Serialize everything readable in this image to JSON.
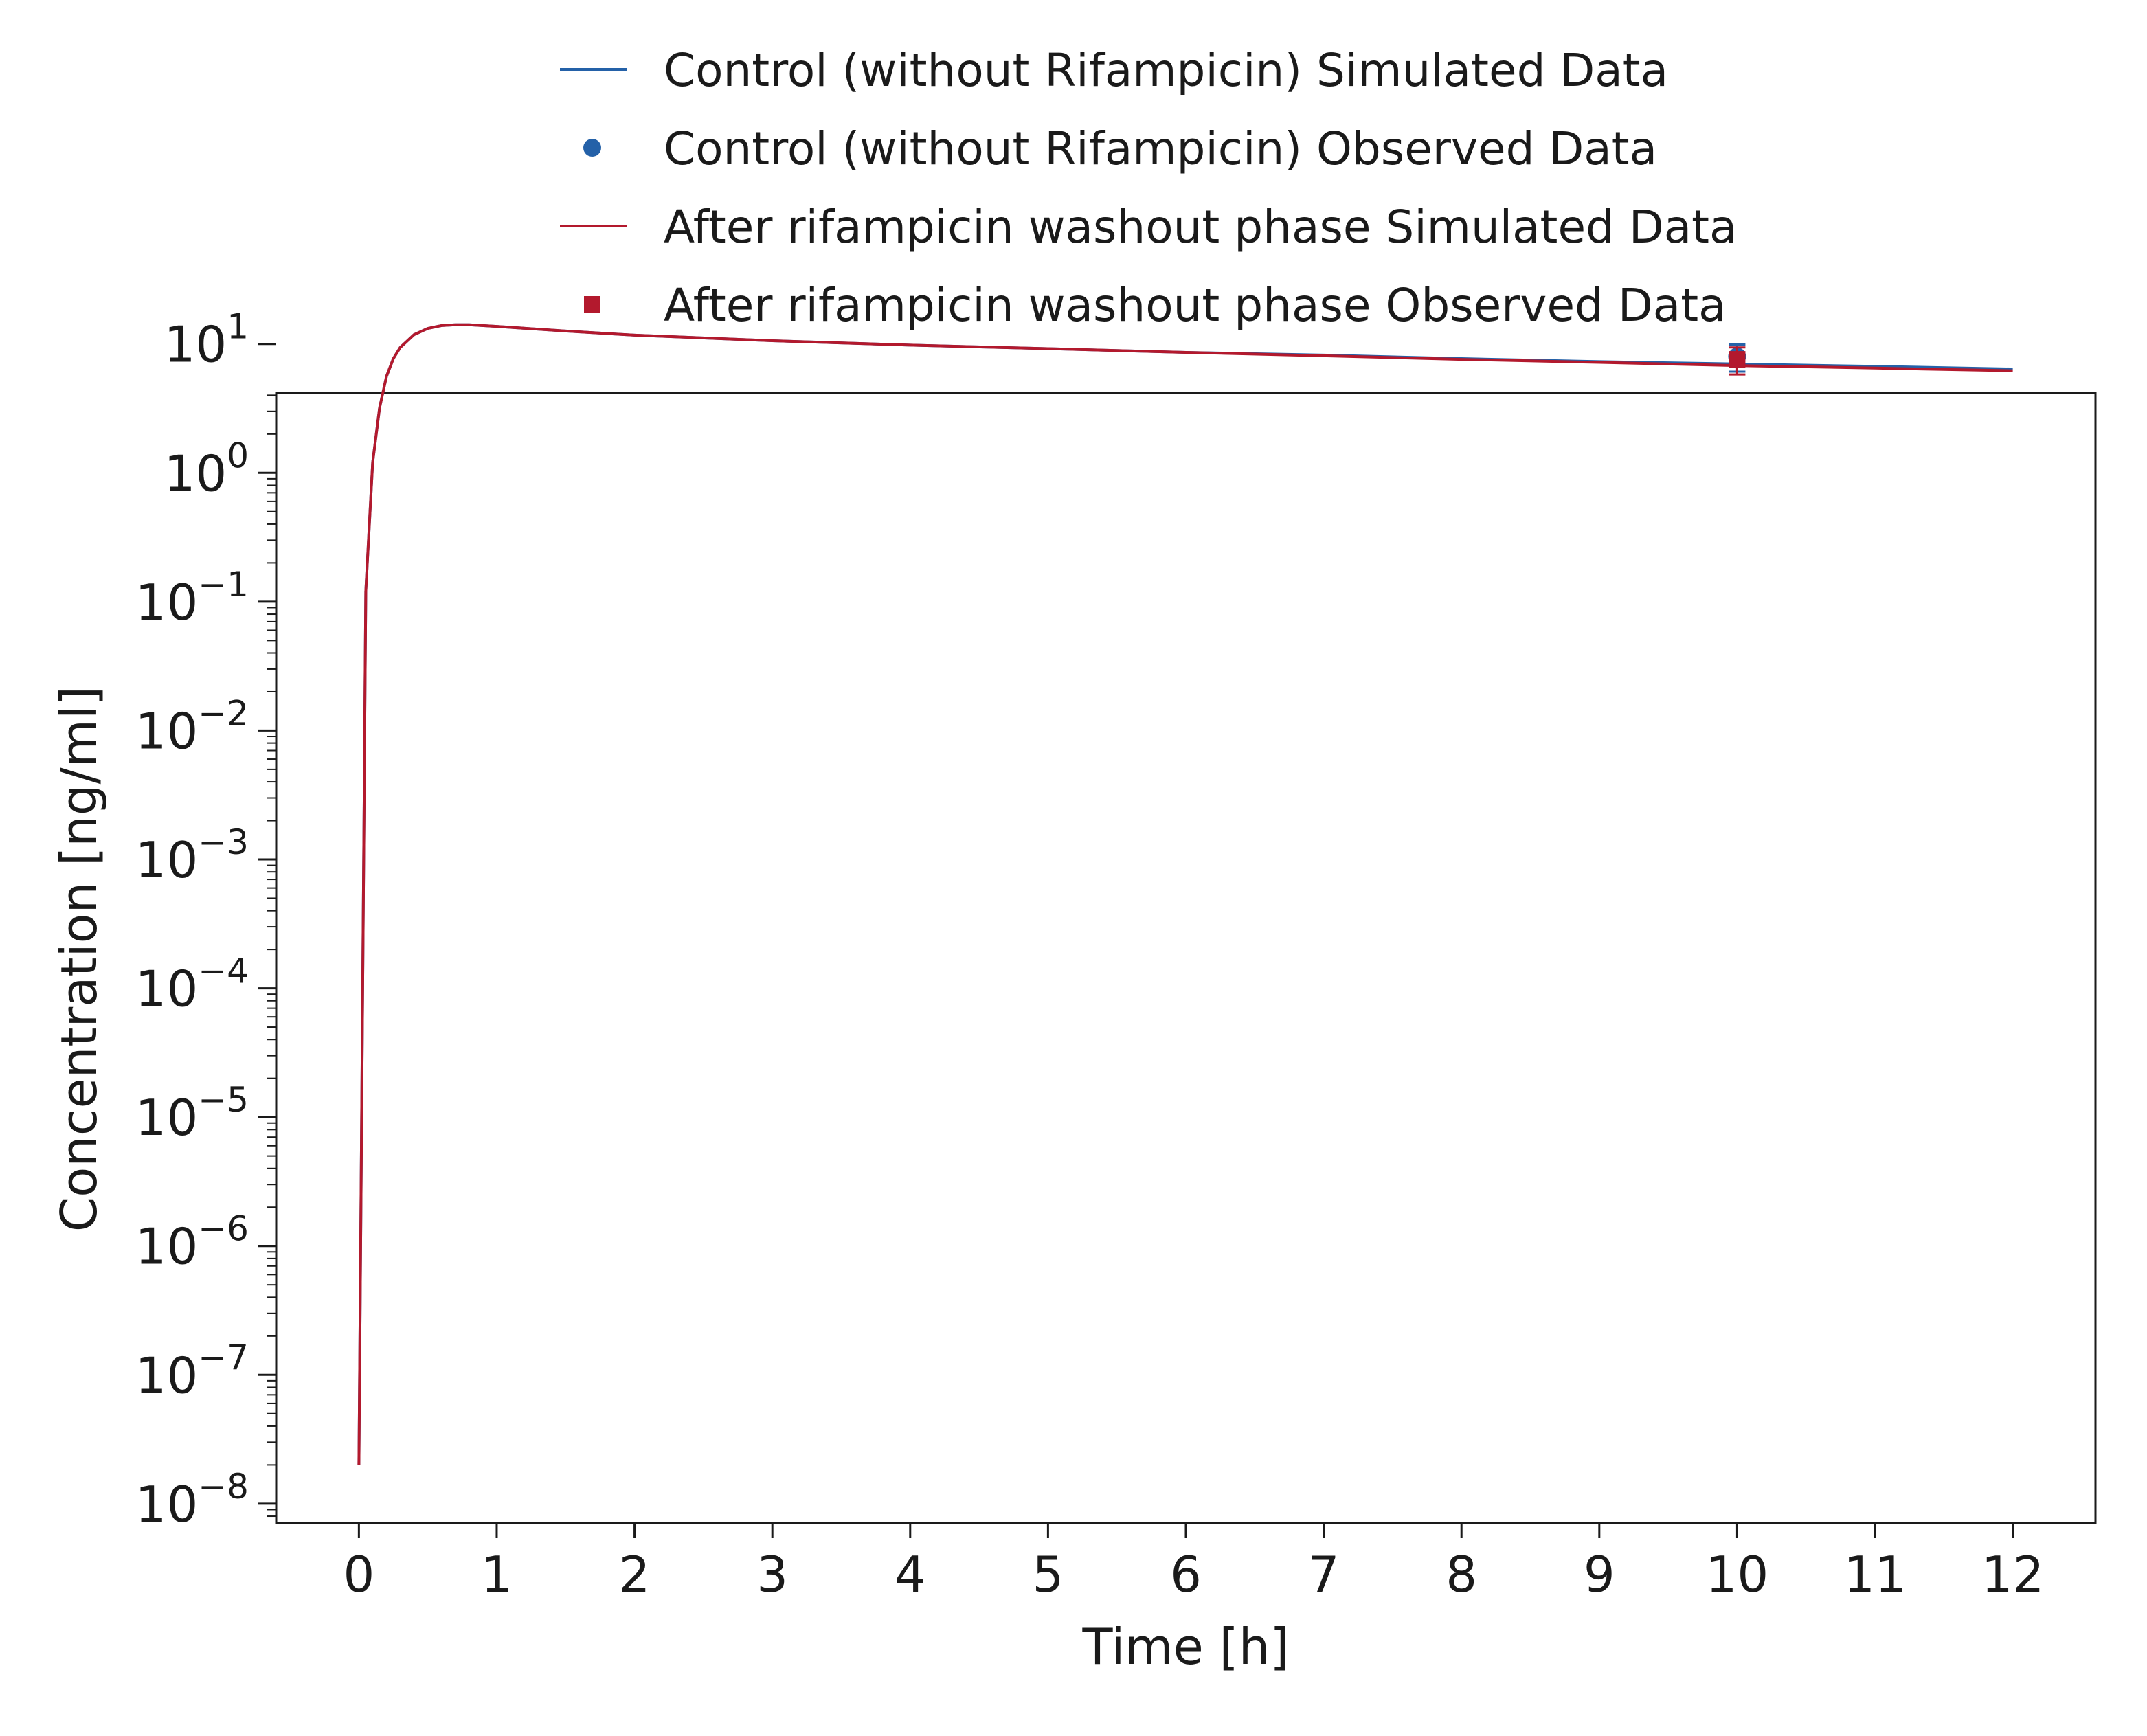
{
  "chart_data": {
    "type": "line",
    "title": "",
    "xlabel": "Time [h]",
    "ylabel": "Concentration [ng/ml]",
    "xlim": [
      -0.6,
      12.6
    ],
    "ylim_log10": [
      -8.15,
      0.62
    ],
    "yscale": "log",
    "x_ticks": [
      0,
      1,
      2,
      3,
      4,
      5,
      6,
      7,
      8,
      9,
      10,
      11,
      12
    ],
    "x_tick_labels": [
      "0",
      "1",
      "2",
      "3",
      "4",
      "5",
      "6",
      "7",
      "8",
      "9",
      "10",
      "11",
      "12"
    ],
    "y_tick_labels": [
      {
        "value": 10,
        "base": "10",
        "exp": "1"
      },
      {
        "value": 1,
        "base": "10",
        "exp": "0"
      },
      {
        "value": 0.1,
        "base": "10",
        "exp": "−1"
      },
      {
        "value": 0.01,
        "base": "10",
        "exp": "−2"
      },
      {
        "value": 0.001,
        "base": "10",
        "exp": "−3"
      },
      {
        "value": 0.0001,
        "base": "10",
        "exp": "−4"
      },
      {
        "value": 1e-05,
        "base": "10",
        "exp": "−5"
      },
      {
        "value": 1e-06,
        "base": "10",
        "exp": "−6"
      },
      {
        "value": 1e-07,
        "base": "10",
        "exp": "−7"
      },
      {
        "value": 1e-08,
        "base": "10",
        "exp": "−8"
      }
    ],
    "grid": false,
    "legend_position": "top-center",
    "series": [
      {
        "name": "Control (without Rifampicin) Simulated Data",
        "kind": "line",
        "color": "#2461a8",
        "x": [
          0,
          0.05,
          0.1,
          0.15,
          0.2,
          0.25,
          0.3,
          0.4,
          0.5,
          0.6,
          0.7,
          0.8,
          1,
          1.5,
          2,
          3,
          4,
          5,
          6,
          7,
          8,
          9,
          10,
          11,
          12
        ],
        "y": [
          2e-08,
          0.12,
          1.2,
          3.2,
          5.6,
          7.7,
          9.4,
          11.8,
          13.2,
          13.9,
          14.1,
          14.1,
          13.7,
          12.6,
          11.7,
          10.6,
          9.8,
          9.2,
          8.6,
          8.2,
          7.7,
          7.3,
          7.0,
          6.7,
          6.4
        ]
      },
      {
        "name": "Control (without Rifampicin) Observed Data",
        "kind": "points",
        "marker": "circle",
        "color": "#2461a8",
        "points": [
          {
            "x": 10,
            "y": 8.0,
            "ylow": 6.1,
            "yhigh": 9.9
          }
        ]
      },
      {
        "name": "After rifampicin washout phase Simulated Data",
        "kind": "line",
        "color": "#b3192d",
        "x": [
          0,
          0.05,
          0.1,
          0.15,
          0.2,
          0.25,
          0.3,
          0.4,
          0.5,
          0.6,
          0.7,
          0.8,
          1,
          1.5,
          2,
          3,
          4,
          5,
          6,
          7,
          8,
          9,
          10,
          11,
          12
        ],
        "y": [
          2e-08,
          0.12,
          1.2,
          3.2,
          5.6,
          7.7,
          9.4,
          11.8,
          13.2,
          13.9,
          14.1,
          14.1,
          13.7,
          12.6,
          11.7,
          10.6,
          9.8,
          9.2,
          8.6,
          8.1,
          7.6,
          7.2,
          6.8,
          6.5,
          6.2
        ]
      },
      {
        "name": "After rifampicin washout phase Observed Data",
        "kind": "points",
        "marker": "square",
        "color": "#b3192d",
        "points": [
          {
            "x": 10,
            "y": 7.6,
            "ylow": 5.8,
            "yhigh": 9.4
          }
        ]
      }
    ]
  }
}
